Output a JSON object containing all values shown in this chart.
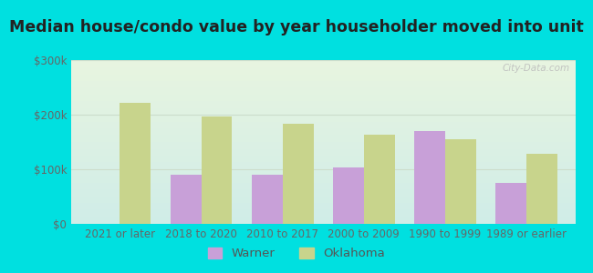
{
  "title": "Median house/condo value by year householder moved into unit",
  "categories": [
    "2021 or later",
    "2018 to 2020",
    "2010 to 2017",
    "2000 to 2009",
    "1990 to 1999",
    "1989 or earlier"
  ],
  "warner_values": [
    0,
    90000,
    90000,
    103000,
    170000,
    75000
  ],
  "oklahoma_values": [
    222000,
    197000,
    183000,
    163000,
    155000,
    128000
  ],
  "warner_color": "#c8a0d8",
  "oklahoma_color": "#c8d48c",
  "background_color": "#00e0e0",
  "plot_bg_top": "#e8f5e0",
  "plot_bg_bottom": "#d0ede8",
  "ylim": [
    0,
    300000
  ],
  "ytick_values": [
    0,
    100000,
    200000,
    300000
  ],
  "ytick_labels": [
    "$0",
    "$100k",
    "$200k",
    "$300k"
  ],
  "grid_color": "#ccddcc",
  "title_fontsize": 12.5,
  "tick_fontsize": 8.5,
  "legend_fontsize": 9.5,
  "bar_width": 0.38,
  "watermark": "City-Data.com"
}
